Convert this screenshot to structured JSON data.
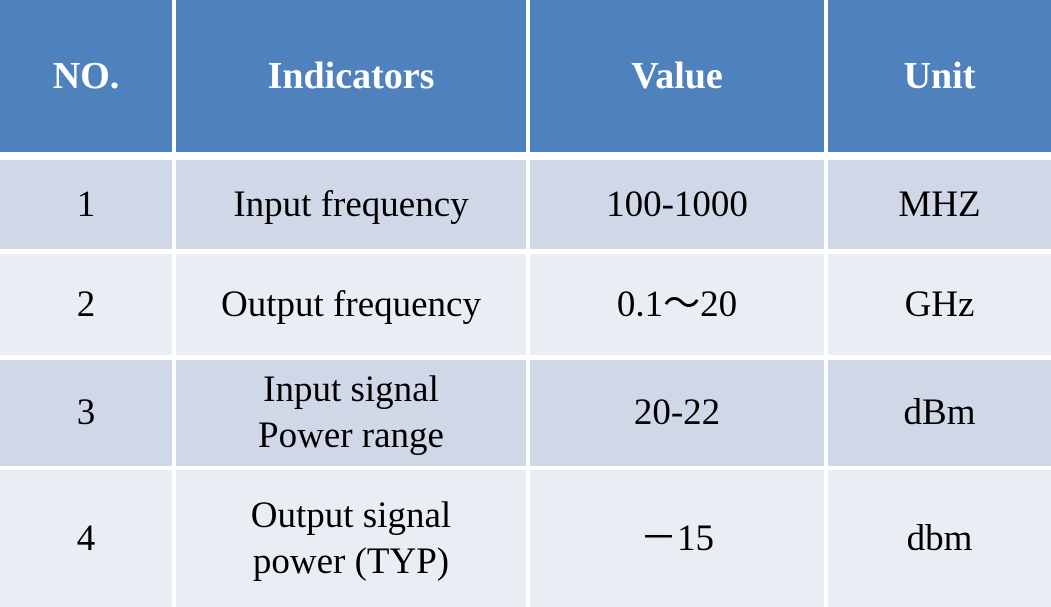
{
  "table": {
    "headers": [
      "NO.",
      "Indicators",
      "Value",
      "Unit"
    ],
    "rows": [
      {
        "no": "1",
        "indicator_line1": "Input frequency",
        "indicator_line2": "",
        "value": "100-1000",
        "unit": "MHZ"
      },
      {
        "no": "2",
        "indicator_line1": "Output frequency",
        "indicator_line2": "",
        "value": "0.1～20",
        "unit": "GHz"
      },
      {
        "no": "3",
        "indicator_line1": "Input signal",
        "indicator_line2": "Power range",
        "value": "20-22",
        "unit": "dBm"
      },
      {
        "no": "4",
        "indicator_line1": "Output signal",
        "indicator_line2": "power (TYP)",
        "value": "－15",
        "unit": "dbm"
      }
    ]
  },
  "colors": {
    "header_bg": "#4f81bd",
    "row_odd_bg": "#d0d8e8",
    "row_even_bg": "#e9edf4",
    "header_text": "#ffffff"
  }
}
